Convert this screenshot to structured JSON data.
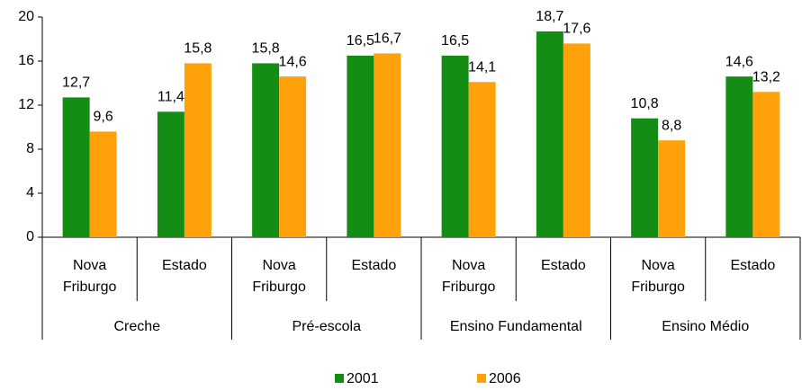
{
  "chart_data": {
    "type": "bar",
    "categories": [
      "Nova Friburgo",
      "Estado",
      "Nova Friburgo",
      "Estado",
      "Nova Friburgo",
      "Estado",
      "Nova Friburgo",
      "Estado"
    ],
    "groups": [
      "Creche",
      "Pré-escola",
      "Ensino Fundamental",
      "Ensino Médio"
    ],
    "series": [
      {
        "name": "2001",
        "color": "#138d13",
        "values": [
          12.7,
          11.4,
          15.8,
          16.5,
          16.5,
          18.7,
          10.8,
          14.6
        ],
        "value_labels": [
          "12,7",
          "11,4",
          "15,8",
          "16,5",
          "16,5",
          "18,7",
          "10,8",
          "14,6"
        ]
      },
      {
        "name": "2006",
        "color": "#ffa10a",
        "values": [
          9.6,
          15.8,
          14.6,
          16.7,
          14.1,
          17.6,
          8.8,
          13.2
        ],
        "value_labels": [
          "9,6",
          "15,8",
          "14,6",
          "16,7",
          "14,1",
          "17,6",
          "8,8",
          "13,2"
        ]
      }
    ],
    "ylim": [
      0,
      20
    ],
    "yticks": [
      0,
      4,
      8,
      12,
      16,
      20
    ],
    "grid": false,
    "legend": "bottom"
  }
}
